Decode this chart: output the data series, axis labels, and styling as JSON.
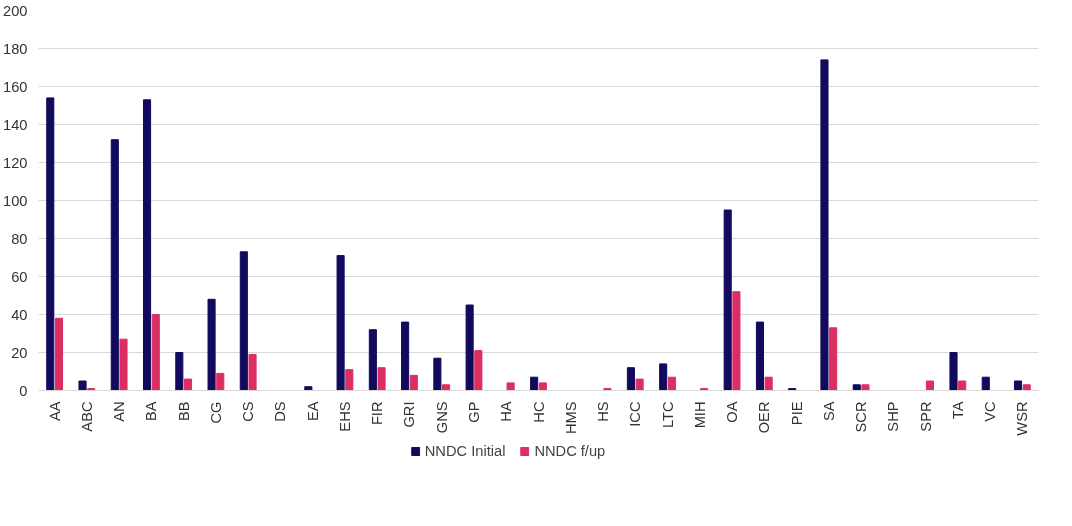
{
  "chart_data": {
    "type": "bar",
    "categories": [
      "AA",
      "ABC",
      "AN",
      "BA",
      "BB",
      "CG",
      "CS",
      "DS",
      "EA",
      "EHS",
      "FIR",
      "GRI",
      "GNS",
      "GP",
      "HA",
      "HC",
      "HMS",
      "HS",
      "ICC",
      "LTC",
      "MIH",
      "OA",
      "OER",
      "PIE",
      "SA",
      "SCR",
      "SHP",
      "SPR",
      "TA",
      "VC",
      "WSR"
    ],
    "series": [
      {
        "name": "NNDC Initial",
        "color": "#120a5c",
        "values": [
          154,
          5,
          132,
          153,
          20,
          48,
          73,
          0,
          2,
          71,
          32,
          36,
          17,
          45,
          0,
          7,
          0,
          0,
          12,
          14,
          0,
          95,
          36,
          1,
          174,
          3,
          0,
          0,
          20,
          7,
          5
        ]
      },
      {
        "name": "NNDC f/up",
        "color": "#db2e63",
        "values": [
          38,
          1,
          27,
          40,
          6,
          9,
          19,
          0,
          0,
          11,
          12,
          8,
          3,
          21,
          4,
          4,
          0,
          1,
          6,
          7,
          1,
          52,
          7,
          0,
          33,
          3,
          0,
          5,
          5,
          0,
          3
        ]
      }
    ],
    "ylim": [
      0,
      200
    ],
    "yticks": [
      0,
      20,
      40,
      60,
      80,
      100,
      120,
      140,
      160,
      180,
      200
    ],
    "grid": "y",
    "legend": "bottom"
  }
}
